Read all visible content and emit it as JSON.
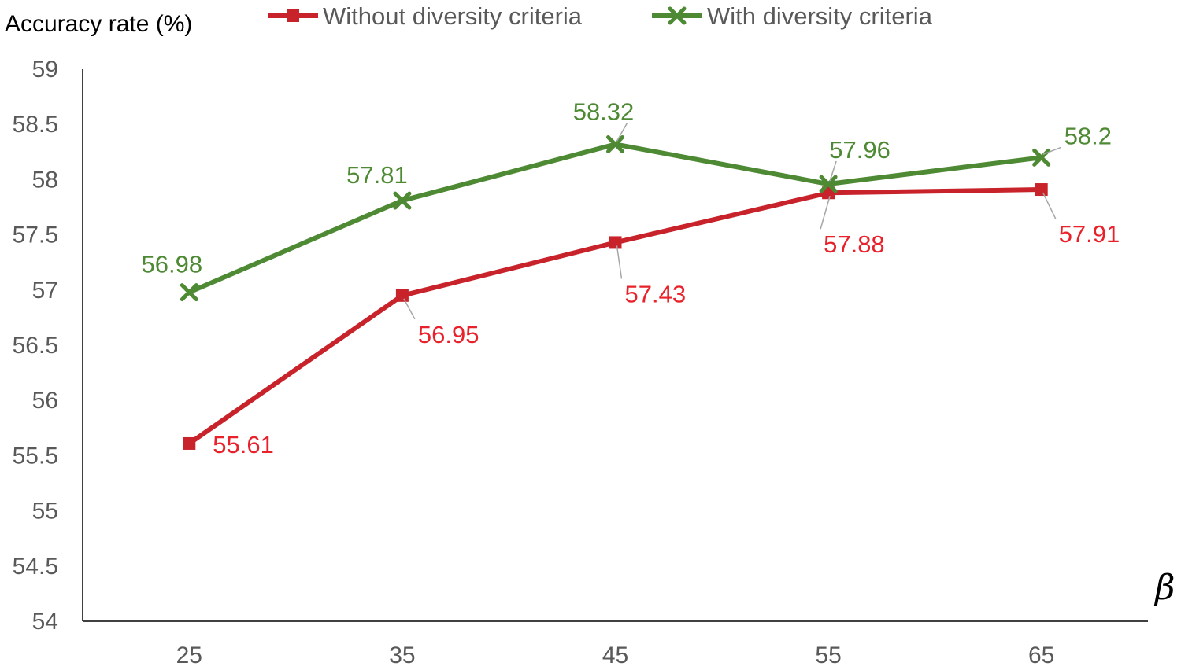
{
  "chart_data": {
    "type": "line",
    "title": "",
    "ylabel": "Accuracy rate (%)",
    "xlabel": "β",
    "x": [
      25,
      35,
      45,
      55,
      65
    ],
    "ylim": [
      54,
      59
    ],
    "y_ticks": [
      "54",
      "54.5",
      "55",
      "55.5",
      "56",
      "56.5",
      "57",
      "57.5",
      "58",
      "58.5",
      "59"
    ],
    "x_ticks": [
      "25",
      "35",
      "45",
      "55",
      "65"
    ],
    "grid": false,
    "legend_position": "top",
    "series": [
      {
        "name": "Without diversity criteria",
        "color": "#c8232b",
        "label_color": "#e8212a",
        "marker": "square",
        "values": [
          55.61,
          56.95,
          57.43,
          57.88,
          57.91
        ],
        "labels": [
          "55.61",
          "56.95",
          "57.43",
          "57.88",
          "57.91"
        ]
      },
      {
        "name": "With diversity criteria",
        "color": "#4e8a34",
        "label_color": "#4e8a34",
        "marker": "x",
        "values": [
          56.98,
          57.81,
          58.32,
          57.96,
          58.2
        ],
        "labels": [
          "56.98",
          "57.81",
          "58.32",
          "57.96",
          "58.2"
        ]
      }
    ]
  }
}
